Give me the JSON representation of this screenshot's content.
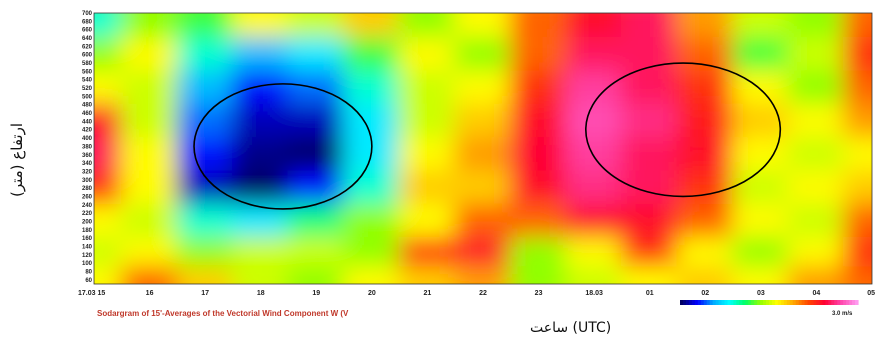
{
  "chart_data": {
    "type": "heatmap",
    "title": "",
    "ylabel": "ارتفاع (متر)",
    "xlabel": "ساعت (UTC)",
    "caption": "Sodargram of 15'-Averages of the Vectorial Wind Component W (V",
    "x_ticks": [
      "17.03 15",
      "16",
      "17",
      "18",
      "19",
      "20",
      "21",
      "22",
      "23",
      "18.03",
      "01",
      "02",
      "03",
      "04",
      "05"
    ],
    "y_ticks": [
      700,
      680,
      660,
      640,
      620,
      600,
      580,
      560,
      540,
      520,
      500,
      480,
      460,
      440,
      420,
      400,
      380,
      360,
      340,
      320,
      300,
      280,
      260,
      240,
      220,
      200,
      180,
      160,
      140,
      120,
      100,
      80,
      60
    ],
    "ylim": [
      50,
      700
    ],
    "colorbar": {
      "label": "3.0 m/s",
      "colors": [
        "#000066",
        "#0000ff",
        "#00aaff",
        "#00ffff",
        "#00ff66",
        "#99ff00",
        "#ffff00",
        "#ffaa00",
        "#ff4400",
        "#ff0033",
        "#ff44aa",
        "#ff99ee"
      ]
    },
    "field": {
      "x_hours": [
        15,
        16,
        17,
        18,
        19,
        20,
        21,
        22,
        23,
        24,
        25,
        26,
        27,
        28,
        29
      ],
      "heights": [
        680,
        600,
        520,
        440,
        360,
        280,
        200,
        120,
        60
      ],
      "values": [
        [
          0.3,
          0.45,
          0.4,
          0.55,
          0.5,
          0.6,
          0.45,
          0.55,
          0.7,
          0.8,
          0.85,
          0.65,
          0.5,
          0.45,
          0.7
        ],
        [
          0.45,
          0.55,
          0.3,
          0.2,
          0.25,
          0.4,
          0.55,
          0.45,
          0.7,
          0.85,
          0.85,
          0.7,
          0.4,
          0.5,
          0.75
        ],
        [
          0.55,
          0.5,
          0.2,
          0.1,
          0.15,
          0.3,
          0.5,
          0.55,
          0.75,
          0.9,
          0.85,
          0.75,
          0.55,
          0.45,
          0.7
        ],
        [
          0.8,
          0.5,
          0.15,
          0.05,
          0.05,
          0.25,
          0.5,
          0.6,
          0.8,
          0.92,
          0.88,
          0.78,
          0.6,
          0.55,
          0.65
        ],
        [
          0.85,
          0.55,
          0.1,
          0.02,
          0.0,
          0.25,
          0.55,
          0.65,
          0.82,
          0.9,
          0.85,
          0.8,
          0.55,
          0.5,
          0.55
        ],
        [
          0.75,
          0.55,
          0.05,
          0.0,
          0.1,
          0.3,
          0.6,
          0.6,
          0.8,
          0.88,
          0.85,
          0.75,
          0.5,
          0.55,
          0.6
        ],
        [
          0.55,
          0.5,
          0.3,
          0.25,
          0.35,
          0.45,
          0.55,
          0.7,
          0.7,
          0.8,
          0.8,
          0.7,
          0.55,
          0.5,
          0.7
        ],
        [
          0.5,
          0.55,
          0.45,
          0.5,
          0.5,
          0.45,
          0.75,
          0.8,
          0.45,
          0.55,
          0.75,
          0.55,
          0.45,
          0.55,
          0.75
        ],
        [
          0.55,
          0.7,
          0.6,
          0.5,
          0.45,
          0.55,
          0.6,
          0.65,
          0.45,
          0.5,
          0.55,
          0.6,
          0.55,
          0.65,
          0.7
        ]
      ]
    },
    "ellipses": [
      {
        "center_hour": 18.4,
        "center_height": 380,
        "rx_hours": 1.6,
        "ry_height": 300
      },
      {
        "center_hour": 25.6,
        "center_height": 420,
        "rx_hours": 1.75,
        "ry_height": 320
      }
    ]
  }
}
